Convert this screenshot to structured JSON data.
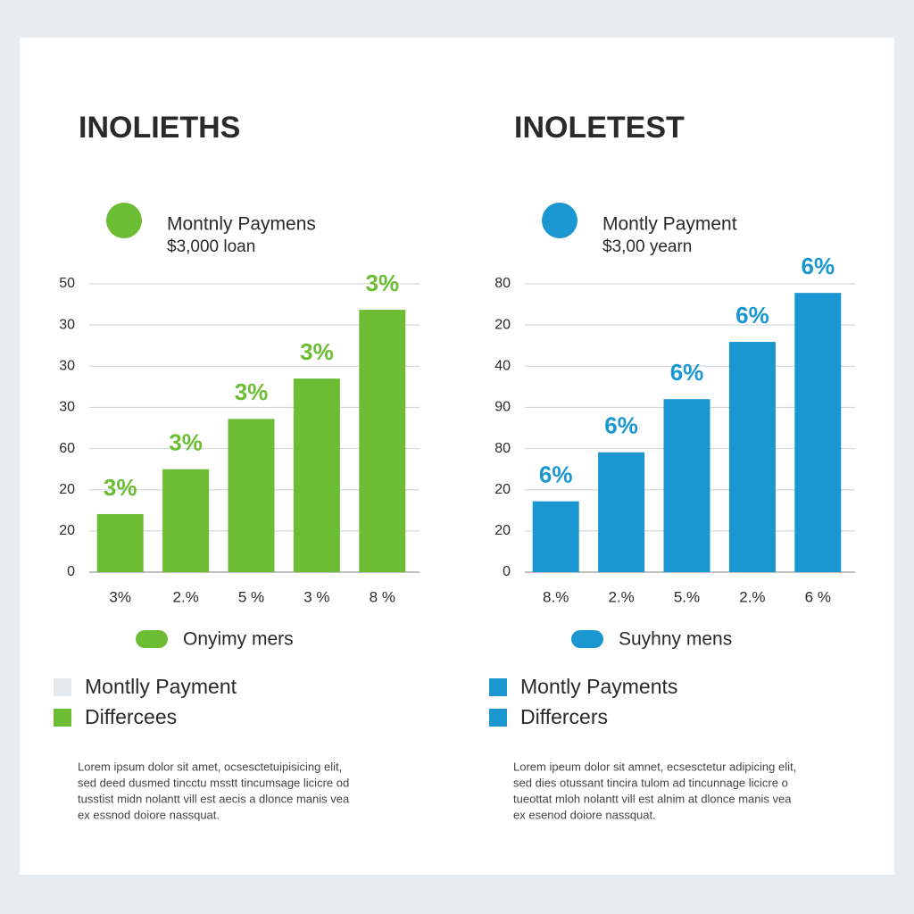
{
  "chart_data": [
    {
      "type": "bar",
      "title": "INOLIETHS",
      "legend_title": "Montnly Paymens",
      "subtitle": "$3,000 loan",
      "categories": [
        "3%",
        "2.%",
        "5 %",
        "3 %",
        "8 %"
      ],
      "series": [
        {
          "name": "Onyimy mers",
          "color": "#6cbd34",
          "values": [
            1.41,
            2.5,
            3.72,
            4.7,
            6.37
          ]
        }
      ],
      "annotations": [
        "3%",
        "3%",
        "3%",
        "3%",
        "3%"
      ],
      "ylim": [
        0,
        7
      ],
      "yticks": [
        {
          "value": 0,
          "label": "0"
        },
        {
          "value": 1,
          "label": "20"
        },
        {
          "value": 2,
          "label": "20"
        },
        {
          "value": 3,
          "label": "60"
        },
        {
          "value": 4,
          "label": "30"
        },
        {
          "value": 5,
          "label": "30"
        },
        {
          "value": 6,
          "label": "30"
        },
        {
          "value": 7,
          "label": "50"
        }
      ],
      "grid": true,
      "key": [
        {
          "label": "Montlly Payment",
          "color": "#e4e8ea"
        },
        {
          "label": "Differcees",
          "color": "#6cbd34"
        }
      ],
      "note": [
        "Lorem ipsum dolor sit amet, ocsesctetuipisicing elit,",
        "sed deed dusmed tincctu msstt tincumsage licicre od",
        "tusstist midn nolantt vill est aecis a dlonce manis vea",
        "ex essnod doiore nassquat."
      ]
    },
    {
      "type": "bar",
      "title": "INOLETEST",
      "legend_title": "Montly Payment",
      "subtitle": "$3,00 yearn",
      "categories": [
        "8.%",
        "2.%",
        "5.%",
        "2.%",
        "6 %"
      ],
      "series": [
        {
          "name": "Suyhny mens",
          "color": "#1a96d0",
          "values": [
            1.72,
            2.91,
            4.2,
            5.59,
            6.78
          ]
        }
      ],
      "annotations": [
        "6%",
        "6%",
        "6%",
        "6%",
        "6%"
      ],
      "ylim": [
        0,
        7
      ],
      "yticks": [
        {
          "value": 0,
          "label": "0"
        },
        {
          "value": 1,
          "label": "20"
        },
        {
          "value": 2,
          "label": "20"
        },
        {
          "value": 3,
          "label": "80"
        },
        {
          "value": 4,
          "label": "90"
        },
        {
          "value": 5,
          "label": "40"
        },
        {
          "value": 6,
          "label": "20"
        },
        {
          "value": 7,
          "label": "80"
        }
      ],
      "grid": true,
      "key": [
        {
          "label": "Montly Payments",
          "color": "#1a96d0"
        },
        {
          "label": "Differcers",
          "color": "#1a96d0"
        }
      ],
      "note": [
        "Lorem ipeum dolor sit amnet, ecsesctetur adipicing elit,",
        "sed dies otussant tincira tulom ad tincunnage licicre o",
        "tueottat mloh nolantt vill est alnim at dlonce manis vea",
        "ex esenod doiore nassquat."
      ]
    }
  ]
}
